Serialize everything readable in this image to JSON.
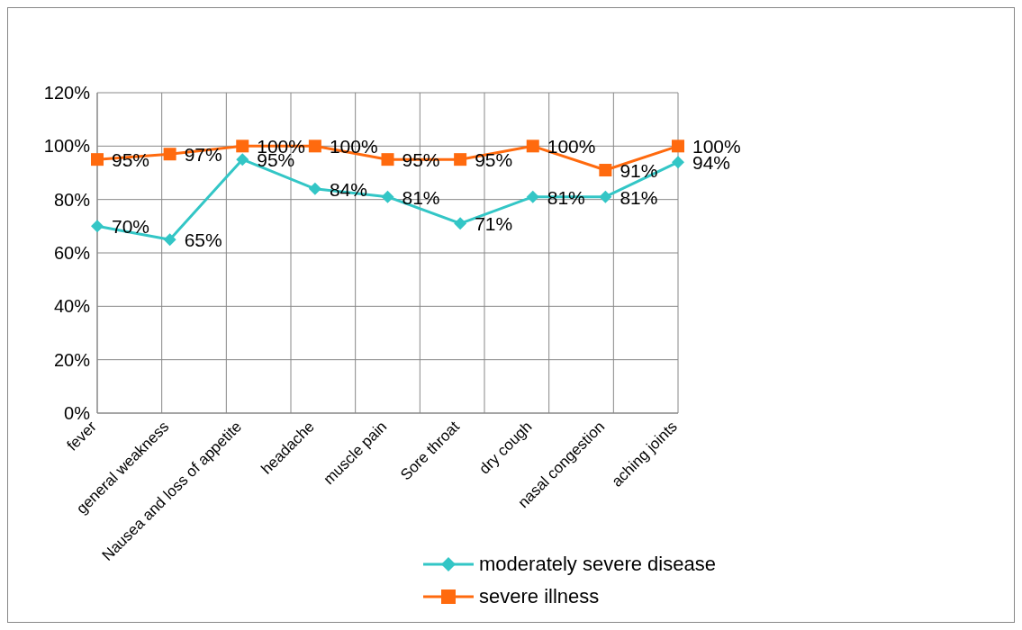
{
  "chart_data": {
    "type": "line",
    "categories": [
      "fever",
      "general weakness",
      "Nausea and loss of appetite",
      "headache",
      "muscle pain",
      "Sore throat",
      "dry cough",
      "nasal congestion",
      "aching joints"
    ],
    "series": [
      {
        "name": "moderately severe disease",
        "color": "#33c6c6",
        "marker": "diamond",
        "values": [
          70,
          65,
          95,
          84,
          81,
          71,
          81,
          81,
          94
        ],
        "value_labels": [
          "70%",
          "65%",
          "95%",
          "84%",
          "81%",
          "71%",
          "81%",
          "81%",
          "94%"
        ]
      },
      {
        "name": "severe illness",
        "color": "#ff6a0e",
        "marker": "square",
        "values": [
          95,
          97,
          100,
          100,
          95,
          95,
          100,
          91,
          100
        ],
        "value_labels": [
          "95%",
          "97%",
          "100%",
          "100%",
          "95%",
          "95%",
          "100%",
          "91%",
          "100%"
        ]
      }
    ],
    "ylim": [
      0,
      120
    ],
    "yticks": [
      {
        "value": 0,
        "label": "0%"
      },
      {
        "value": 20,
        "label": "20%"
      },
      {
        "value": 40,
        "label": "40%"
      },
      {
        "value": 60,
        "label": "60%"
      },
      {
        "value": 80,
        "label": "80%"
      },
      {
        "value": 100,
        "label": "100%"
      },
      {
        "value": 120,
        "label": "120%"
      }
    ],
    "grid": true,
    "legend": "bottom",
    "line_style": "solid"
  }
}
